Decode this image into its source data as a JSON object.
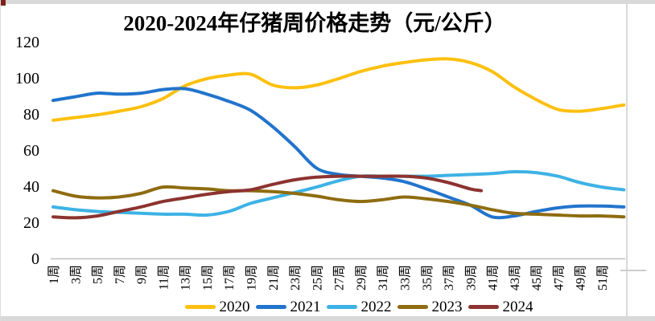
{
  "page": {
    "title": "2020-2024年仔猪周价格走势（元/公斤）"
  },
  "frame": {
    "edge_color": "#D9D9D9",
    "corner_marker_color": "#7B2318",
    "axis_line_color": "#BFBFBF"
  },
  "chart_data": {
    "type": "line",
    "title": "2020-2024年仔猪周价格走势（元/公斤）",
    "xlabel": "",
    "ylabel": "",
    "grid": false,
    "legend_position": "bottom",
    "line_style": "smooth",
    "y_axis": {
      "ticks": [
        0,
        20,
        40,
        60,
        80,
        100,
        120
      ],
      "range": [
        0,
        120
      ]
    },
    "x_axis": {
      "unit_suffix": "周",
      "tick_weeks": [
        1,
        3,
        5,
        7,
        9,
        11,
        13,
        15,
        17,
        19,
        21,
        23,
        25,
        27,
        29,
        31,
        33,
        35,
        37,
        39,
        41,
        43,
        45,
        47,
        49,
        51
      ],
      "tick_labels": [
        "1周",
        "3周",
        "5周",
        "7周",
        "9周",
        "11周",
        "13周",
        "15周",
        "17周",
        "19周",
        "21周",
        "23周",
        "25周",
        "27周",
        "29周",
        "31周",
        "33周",
        "35周",
        "37周",
        "39周",
        "41周",
        "43周",
        "45周",
        "47周",
        "49周",
        "51周"
      ],
      "range": [
        1,
        53
      ]
    },
    "series": [
      {
        "name": "2020",
        "color": "#FDC010",
        "weeks": [
          1,
          3,
          5,
          7,
          9,
          11,
          13,
          15,
          17,
          19,
          21,
          23,
          25,
          27,
          29,
          31,
          33,
          35,
          37,
          39,
          41,
          43,
          45,
          47,
          49,
          51,
          53
        ],
        "values": [
          76.5,
          78,
          79.5,
          81.5,
          84,
          88.5,
          95.5,
          99.5,
          101.5,
          102,
          96,
          94.5,
          96,
          99.5,
          103.5,
          106.5,
          108.5,
          110,
          110.5,
          108.5,
          103.5,
          95,
          88,
          82.5,
          81.5,
          83,
          85
        ]
      },
      {
        "name": "2021",
        "color": "#2274CC",
        "weeks": [
          1,
          3,
          5,
          7,
          9,
          11,
          13,
          15,
          17,
          19,
          21,
          23,
          25,
          27,
          29,
          31,
          33,
          35,
          37,
          39,
          41,
          43,
          45,
          47,
          49,
          51,
          53
        ],
        "values": [
          87.5,
          89.5,
          91.5,
          91,
          91.5,
          93.5,
          94,
          91,
          87,
          82,
          73,
          62,
          50,
          46.5,
          45.5,
          44.5,
          42.5,
          38.5,
          34,
          29.5,
          23,
          23.5,
          26,
          28,
          29,
          29,
          28.5
        ]
      },
      {
        "name": "2022",
        "color": "#3DB2E5",
        "weeks": [
          1,
          3,
          5,
          7,
          9,
          11,
          13,
          15,
          17,
          19,
          21,
          23,
          25,
          27,
          29,
          31,
          33,
          35,
          37,
          39,
          41,
          43,
          45,
          47,
          49,
          51,
          53
        ],
        "values": [
          28.5,
          27,
          26,
          25.5,
          25,
          24.5,
          24.5,
          24,
          26,
          30.5,
          33.5,
          36.5,
          39.5,
          43,
          45.5,
          45.5,
          45.5,
          45.5,
          46,
          46.5,
          47,
          48,
          47.5,
          45.5,
          42,
          39.5,
          38
        ]
      },
      {
        "name": "2023",
        "color": "#8E6C10",
        "weeks": [
          1,
          3,
          5,
          7,
          9,
          11,
          13,
          15,
          17,
          19,
          21,
          23,
          25,
          27,
          29,
          31,
          33,
          35,
          37,
          39,
          41,
          43,
          45,
          47,
          49,
          51,
          53
        ],
        "values": [
          37.5,
          34.5,
          33.5,
          34,
          36,
          39.5,
          39,
          38.5,
          37.5,
          37.5,
          37,
          36,
          34.5,
          32.5,
          31.5,
          32.5,
          34,
          33,
          31.5,
          29.5,
          27,
          25,
          24.5,
          24,
          23.5,
          23.5,
          23
        ]
      },
      {
        "name": "2024",
        "color": "#8C3330",
        "weeks": [
          1,
          3,
          5,
          7,
          9,
          11,
          13,
          15,
          17,
          19,
          21,
          23,
          25,
          27,
          29,
          31,
          33,
          35,
          37,
          39,
          40
        ],
        "values": [
          23,
          22.5,
          23.5,
          26,
          28.5,
          31.5,
          33.5,
          35.5,
          37,
          38,
          41,
          43.5,
          45,
          45.5,
          45.5,
          45.5,
          45.5,
          44.5,
          42,
          38.5,
          37.5
        ]
      }
    ]
  }
}
